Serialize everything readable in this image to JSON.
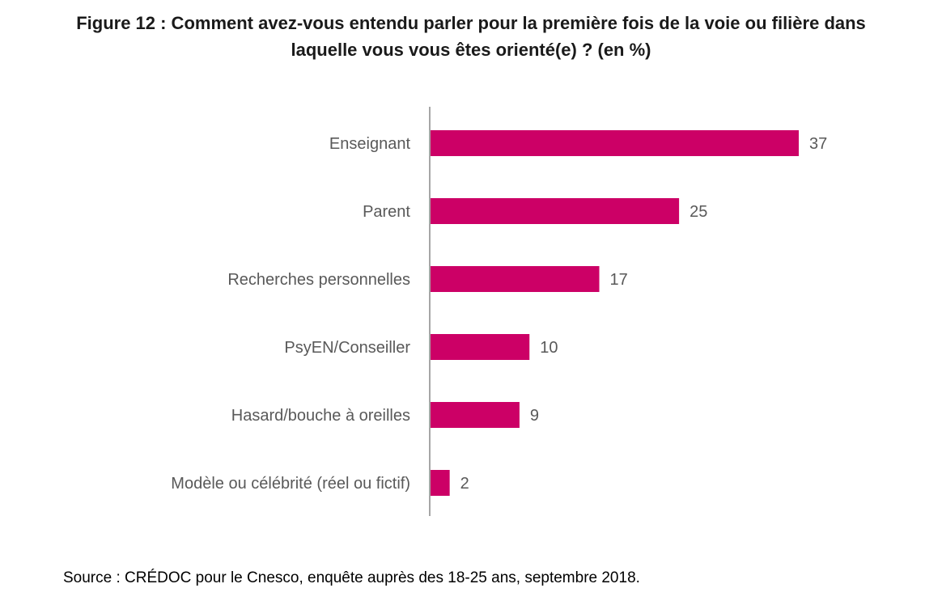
{
  "title_line1": "Figure 12 : Comment avez-vous entendu parler pour la première fois de la voie ou filière dans",
  "title_line2": "laquelle vous vous êtes orienté(e) ? (en %)",
  "source": "Source : CRÉDOC pour le Cnesco, enquête auprès des 18-25 ans, septembre 2018.",
  "colors": {
    "bar": "#cc0066",
    "axis": "#a6a6a6",
    "category_label": "#595959",
    "value_label": "#595959"
  },
  "chart_data": {
    "type": "bar",
    "orientation": "horizontal",
    "categories": [
      "Enseignant",
      "Parent",
      "Recherches personnelles",
      "PsyEN/Conseiller",
      "Hasard/bouche à oreilles",
      "Modèle ou célébrité (réel ou fictif)"
    ],
    "values": [
      37,
      25,
      17,
      10,
      9,
      2
    ],
    "data_labels": [
      "37",
      "25",
      "17",
      "10",
      "9",
      "2"
    ],
    "unit": "%",
    "xlim": [
      0,
      40
    ],
    "grid": false,
    "legend": "none"
  }
}
